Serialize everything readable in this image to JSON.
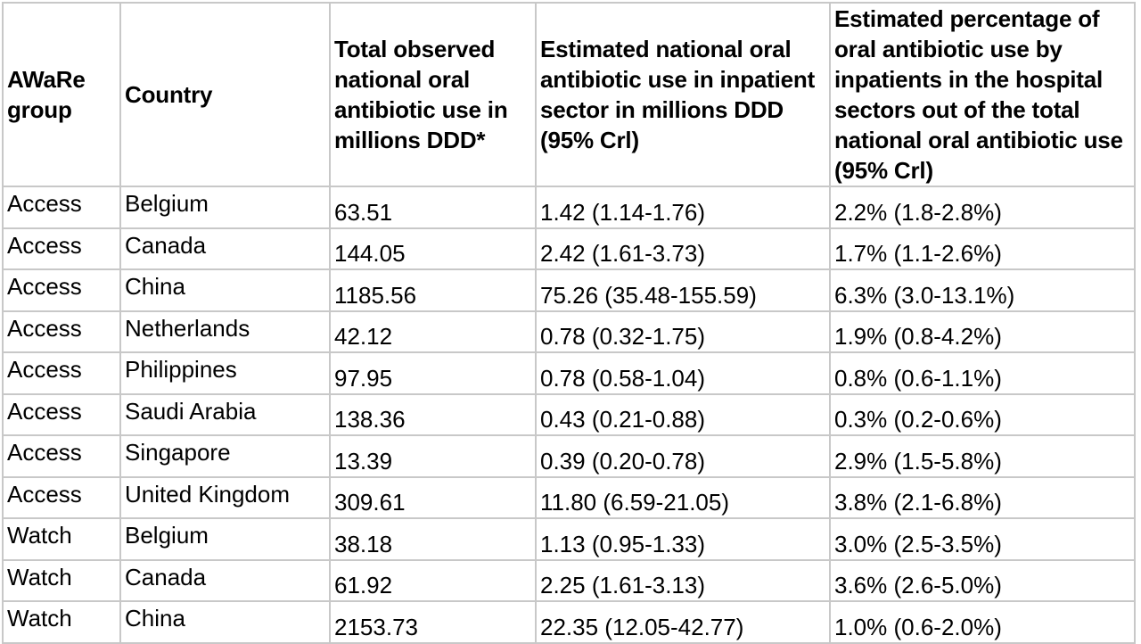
{
  "table": {
    "headers": [
      "AWaRe group",
      "Country",
      "Total observed national oral antibiotic use in millions DDD*",
      "Estimated national oral antibiotic use in inpatient sector in millions DDD (95% Crl)",
      "Estimated percentage of oral antibiotic use by inpatients in the hospital sectors out of the total national oral antibiotic use (95% Crl)"
    ],
    "rows": [
      [
        "Access",
        "Belgium",
        "63.51",
        "1.42 (1.14-1.76)",
        "2.2% (1.8-2.8%)"
      ],
      [
        "Access",
        "Canada",
        "144.05",
        "2.42 (1.61-3.73)",
        "1.7% (1.1-2.6%)"
      ],
      [
        "Access",
        "China",
        "1185.56",
        "75.26 (35.48-155.59)",
        "6.3% (3.0-13.1%)"
      ],
      [
        "Access",
        "Netherlands",
        "42.12",
        "0.78 (0.32-1.75)",
        "1.9% (0.8-4.2%)"
      ],
      [
        "Access",
        "Philippines",
        "97.95",
        "0.78 (0.58-1.04)",
        "0.8% (0.6-1.1%)"
      ],
      [
        "Access",
        "Saudi Arabia",
        "138.36",
        "0.43 (0.21-0.88)",
        "0.3% (0.2-0.6%)"
      ],
      [
        "Access",
        "Singapore",
        "13.39",
        "0.39 (0.20-0.78)",
        "2.9% (1.5-5.8%)"
      ],
      [
        "Access",
        "United Kingdom",
        "309.61",
        "11.80 (6.59-21.05)",
        "3.8% (2.1-6.8%)"
      ],
      [
        "Watch",
        "Belgium",
        "38.18",
        "1.13 (0.95-1.33)",
        "3.0% (2.5-3.5%)"
      ],
      [
        "Watch",
        "Canada",
        "61.92",
        "2.25 (1.61-3.13)",
        "3.6% (2.6-5.0%)"
      ],
      [
        "Watch",
        "China",
        "2153.73",
        "22.35 (12.05-42.77)",
        "1.0% (0.6-2.0%)"
      ]
    ]
  }
}
